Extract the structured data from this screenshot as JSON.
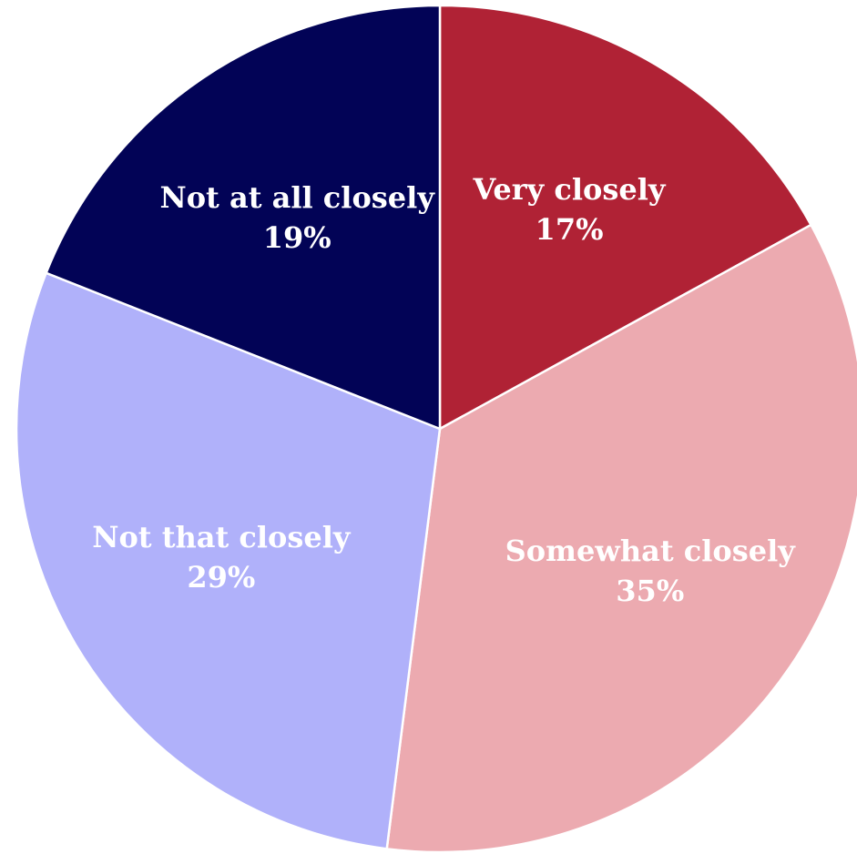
{
  "chart_data": {
    "type": "pie",
    "title": "",
    "start_angle_deg": 0,
    "direction": "clockwise",
    "slices": [
      {
        "label": "Very closely",
        "value": 17,
        "display": "17%",
        "color": "#b02235",
        "label_color": "#ffffff"
      },
      {
        "label": "Somewhat closely",
        "value": 35,
        "display": "35%",
        "color": "#ecaab0",
        "label_color": "#ffffff"
      },
      {
        "label": "Not that closely",
        "value": 29,
        "display": "29%",
        "color": "#b0b1fa",
        "label_color": "#ffffff"
      },
      {
        "label": "Not at all closely",
        "value": 19,
        "display": "19%",
        "color": "#020356",
        "label_color": "#ffffff"
      }
    ]
  }
}
